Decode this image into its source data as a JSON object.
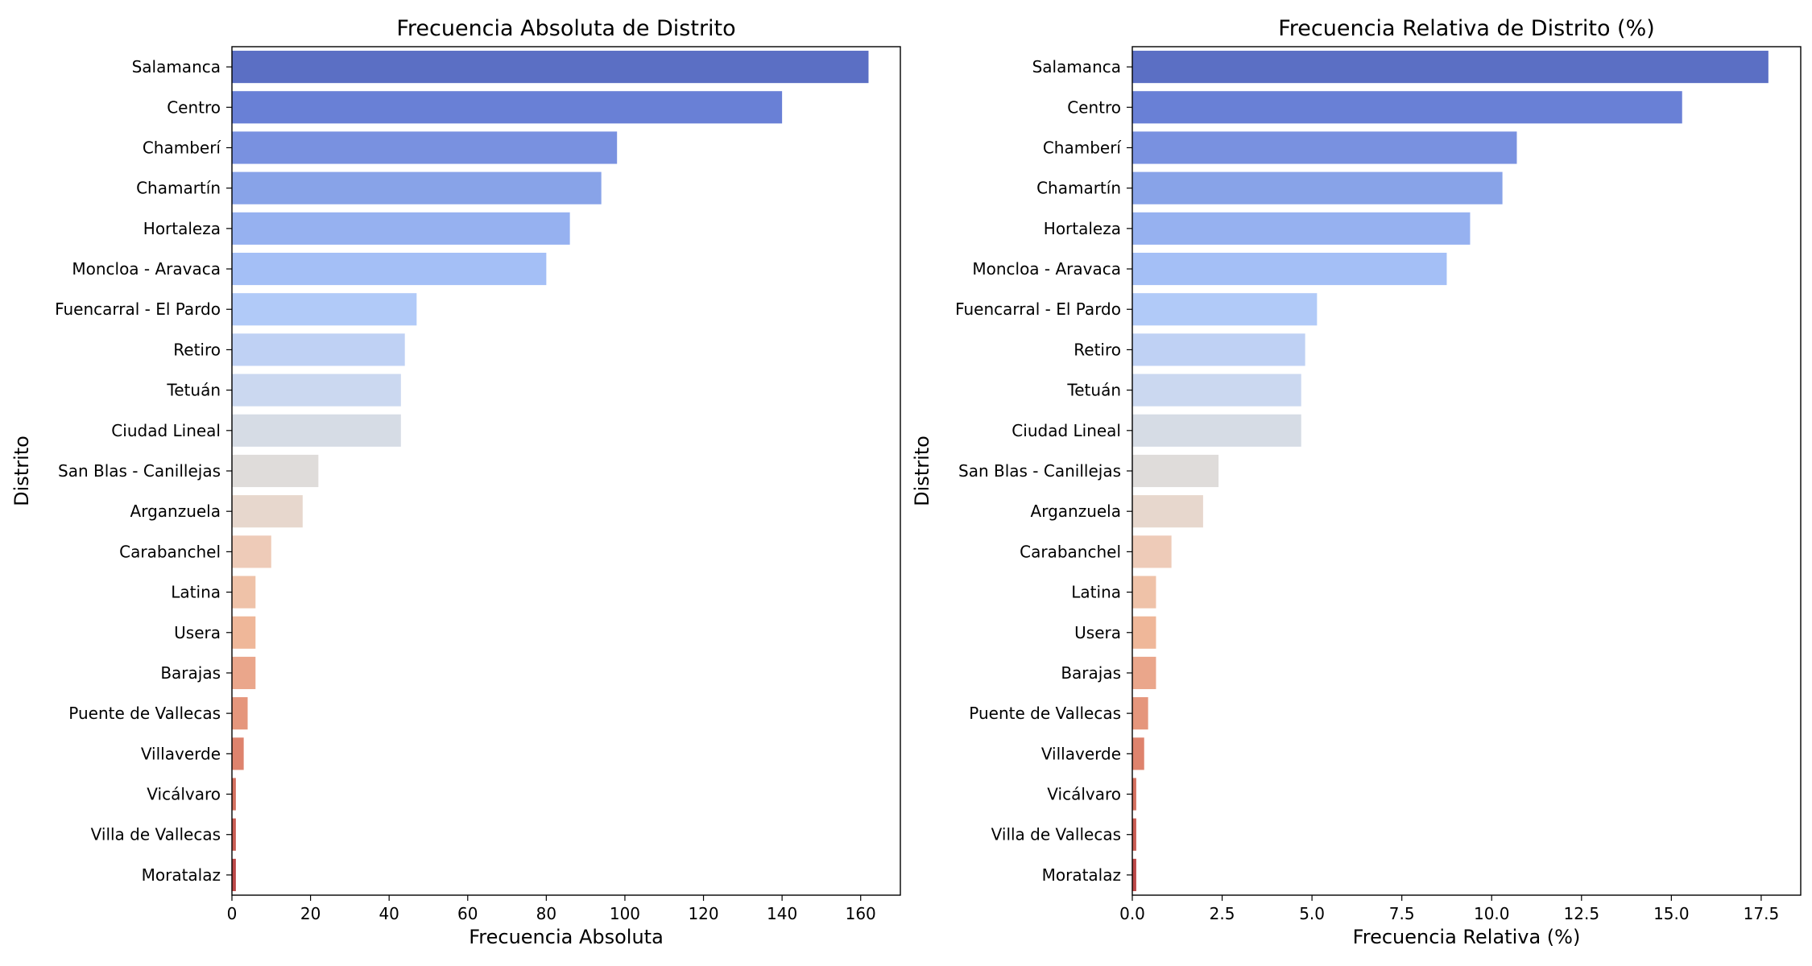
{
  "chart_data": [
    {
      "type": "bar",
      "orientation": "horizontal",
      "title": "Frecuencia Absoluta de Distrito",
      "xlabel": "Frecuencia Absoluta",
      "ylabel": "Distrito",
      "xlim": [
        0,
        170.1
      ],
      "xticks": [
        0,
        20,
        40,
        60,
        80,
        100,
        120,
        140,
        160
      ],
      "xtick_labels": [
        "0",
        "20",
        "40",
        "60",
        "80",
        "100",
        "120",
        "140",
        "160"
      ],
      "categories": [
        "Salamanca",
        "Centro",
        "Chamberí",
        "Chamartín",
        "Hortaleza",
        "Moncloa - Aravaca",
        "Fuencarral - El Pardo",
        "Retiro",
        "Tetuán",
        "Ciudad Lineal",
        "San Blas - Canillejas",
        "Arganzuela",
        "Carabanchel",
        "Latina",
        "Usera",
        "Barajas",
        "Puente de Vallecas",
        "Villaverde",
        "Vicálvaro",
        "Villa de Vallecas",
        "Moratalaz"
      ],
      "values": [
        162,
        140,
        98,
        94,
        86,
        80,
        47,
        44,
        43,
        43,
        22,
        18,
        10,
        6,
        6,
        6,
        4,
        3,
        1,
        1,
        1
      ],
      "grid": false,
      "palette": "coolwarm"
    },
    {
      "type": "bar",
      "orientation": "horizontal",
      "title": "Frecuencia Relativa de Distrito (%)",
      "xlabel": "Frecuencia Relativa (%)",
      "ylabel": "Distrito",
      "xlim": [
        0,
        18.6
      ],
      "xticks": [
        0,
        2.5,
        5,
        7.5,
        10,
        12.5,
        15,
        17.5
      ],
      "xtick_labels": [
        "0.0",
        "2.5",
        "5.0",
        "7.5",
        "10.0",
        "12.5",
        "15.0",
        "17.5"
      ],
      "categories": [
        "Salamanca",
        "Centro",
        "Chamberí",
        "Chamartín",
        "Hortaleza",
        "Moncloa - Aravaca",
        "Fuencarral - El Pardo",
        "Retiro",
        "Tetuán",
        "Ciudad Lineal",
        "San Blas - Canillejas",
        "Arganzuela",
        "Carabanchel",
        "Latina",
        "Usera",
        "Barajas",
        "Puente de Vallecas",
        "Villaverde",
        "Vicálvaro",
        "Villa de Vallecas",
        "Moratalaz"
      ],
      "values": [
        17.7,
        15.3,
        10.7,
        10.3,
        9.4,
        8.75,
        5.14,
        4.81,
        4.7,
        4.7,
        2.4,
        1.97,
        1.09,
        0.66,
        0.66,
        0.66,
        0.44,
        0.33,
        0.11,
        0.11,
        0.11
      ],
      "grid": false,
      "palette": "coolwarm"
    }
  ],
  "colors": [
    "#5b6fc4",
    "#6980d6",
    "#7991e0",
    "#88a3e8",
    "#96b1f0",
    "#a4bff6",
    "#b1caf8",
    "#bfd1f4",
    "#cbd8f0",
    "#d6dce5",
    "#dfdcda",
    "#e7d7cd",
    "#eecbb8",
    "#efc2a8",
    "#efb799",
    "#eaa68b",
    "#e5967c",
    "#de836d",
    "#d4705f",
    "#c95c53",
    "#bc4848"
  ]
}
